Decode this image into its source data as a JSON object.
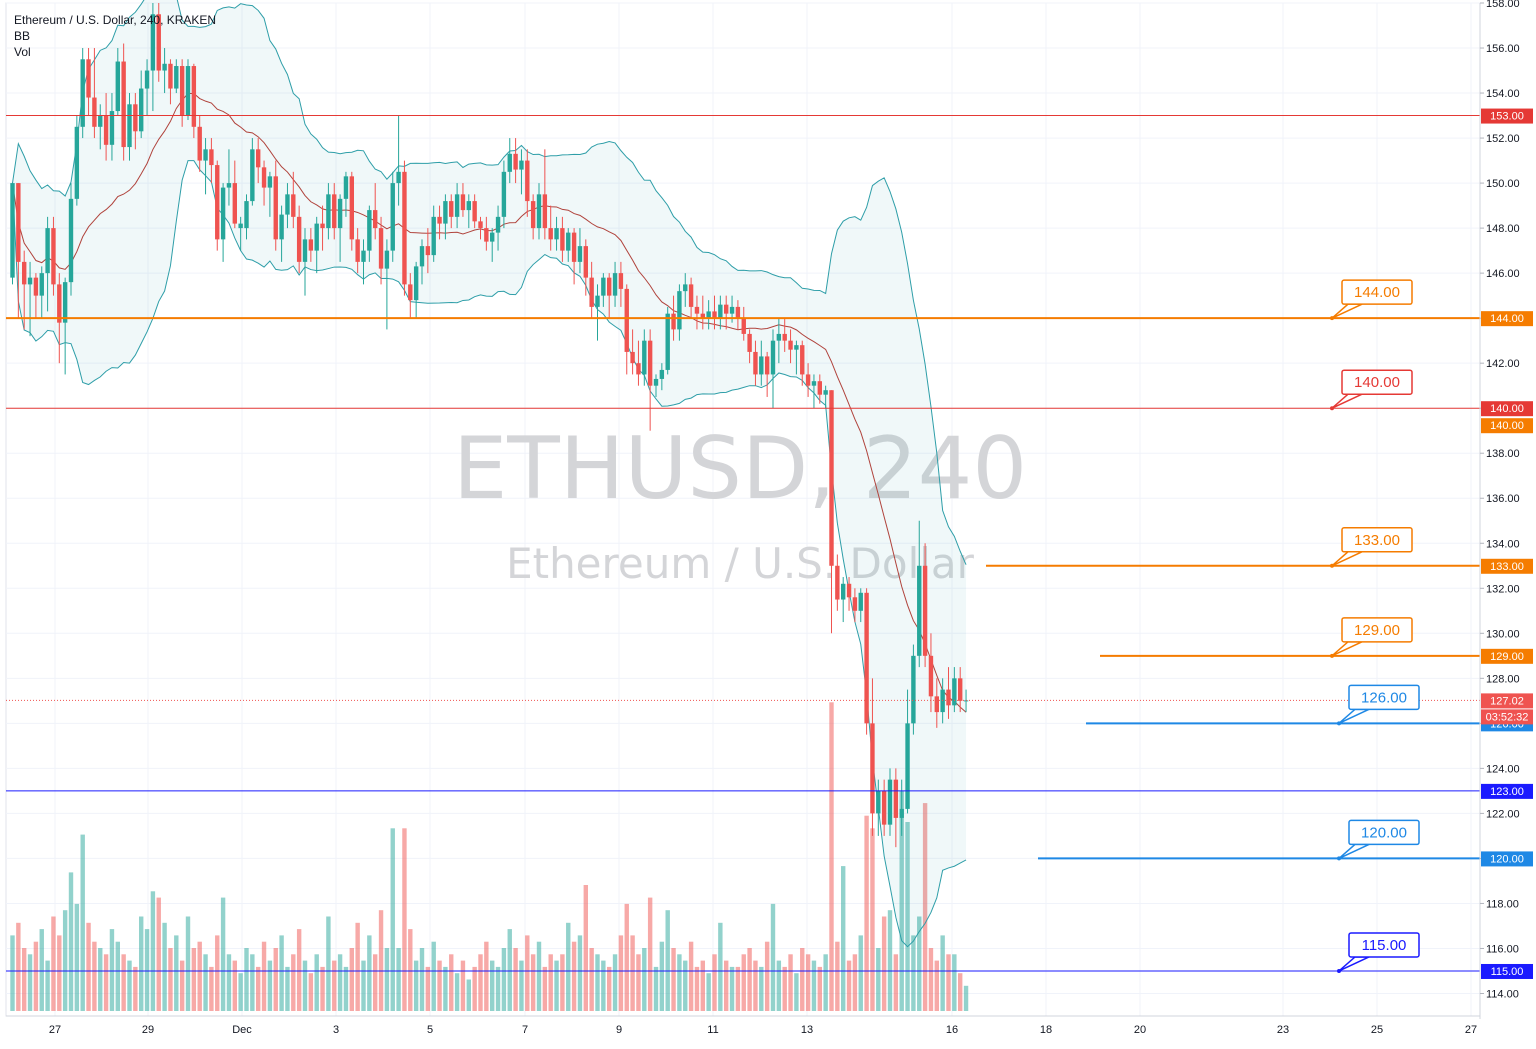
{
  "legend": {
    "symbol_line": "Ethereum / U.S. Dollar, 240, KRAKEN",
    "indicator_bb": "BB",
    "indicator_vol": "Vol"
  },
  "watermark": {
    "symbol": "ETHUSD, 240",
    "description": "Ethereum / U.S. Dollar"
  },
  "colors": {
    "up": "#26a69a",
    "down": "#ef5350",
    "bb_band": "#2e9ea8",
    "bb_basis": "#b0433c",
    "red_level": "#e53935",
    "orange_level": "#f57c00",
    "blue_level": "#1e88e5",
    "navy_level": "#1a1aff"
  },
  "chart_data": {
    "type": "candlestick",
    "title": "Ethereum / U.S. Dollar, 240, KRAKEN",
    "y_axis": {
      "range": [
        113,
        158
      ],
      "ticks": [
        "114.00",
        "116.00",
        "118.00",
        "120.00",
        "122.00",
        "124.00",
        "126.00",
        "128.00",
        "130.00",
        "132.00",
        "134.00",
        "136.00",
        "138.00",
        "140.00",
        "142.00",
        "144.00",
        "146.00",
        "148.00",
        "150.00",
        "152.00",
        "154.00",
        "156.00",
        "158.00"
      ]
    },
    "x_axis": {
      "ticks": [
        "27",
        "29",
        "Dec",
        "3",
        "5",
        "7",
        "9",
        "11",
        "13",
        "16",
        "18",
        "20",
        "23",
        "25",
        "27"
      ]
    },
    "last_price": {
      "value": 127.02,
      "label": "127.02",
      "countdown": "03:52:32"
    },
    "levels": [
      {
        "value": 153,
        "label": "153.00",
        "color": "red",
        "style": "thin"
      },
      {
        "value": 144,
        "label": "144.00",
        "color": "orange",
        "style": "thick",
        "callout": "144.00"
      },
      {
        "value": 140,
        "label": "140.00",
        "color": "red",
        "style": "thin",
        "callout": "140.00"
      },
      {
        "value": 140,
        "label": "140.00",
        "color": "orange",
        "style": "axis-only"
      },
      {
        "value": 133,
        "label": "133.00",
        "color": "orange",
        "style": "thick",
        "callout": "133.00",
        "from_date": "Dec 16"
      },
      {
        "value": 129,
        "label": "129.00",
        "color": "orange",
        "style": "thick",
        "callout": "129.00",
        "from_date": "Dec 19"
      },
      {
        "value": 126,
        "label": "126.00",
        "color": "blue",
        "style": "thick",
        "callout": "126.00",
        "from_date": "Dec 19"
      },
      {
        "value": 123,
        "label": "123.00",
        "color": "navy",
        "style": "thin"
      },
      {
        "value": 120,
        "label": "120.00",
        "color": "blue",
        "style": "thick",
        "callout": "120.00",
        "from_date": "Dec 18"
      },
      {
        "value": 115,
        "label": "115.00",
        "color": "navy",
        "style": "thin",
        "callout": "115.00"
      }
    ],
    "candles": [
      [
        145.8,
        150.0,
        145.5,
        150.0,
        "u",
        1.2
      ],
      [
        150.0,
        150.0,
        144.0,
        146.5,
        "d",
        1.4
      ],
      [
        146.5,
        147.0,
        143.5,
        145.5,
        "d",
        1.0
      ],
      [
        145.5,
        146.5,
        143.2,
        145.8,
        "u",
        0.9
      ],
      [
        145.8,
        146.0,
        144.0,
        145.0,
        "d",
        1.1
      ],
      [
        145.0,
        146.3,
        144.0,
        146.0,
        "u",
        1.3
      ],
      [
        146.0,
        148.5,
        144.3,
        148.0,
        "u",
        0.8
      ],
      [
        148.0,
        148.5,
        145.0,
        145.5,
        "d",
        1.5
      ],
      [
        145.5,
        146.0,
        142.0,
        143.8,
        "d",
        1.2
      ],
      [
        143.8,
        145.8,
        141.5,
        145.6,
        "u",
        1.6
      ],
      [
        145.6,
        150.0,
        145.0,
        149.3,
        "u",
        2.2
      ],
      [
        149.3,
        153.0,
        149.0,
        152.5,
        "u",
        1.7
      ],
      [
        152.5,
        156.0,
        152.0,
        155.5,
        "u",
        2.8
      ],
      [
        155.5,
        156.0,
        153.0,
        153.8,
        "d",
        1.4
      ],
      [
        153.8,
        156.0,
        152.0,
        152.5,
        "d",
        1.1
      ],
      [
        152.5,
        153.5,
        151.5,
        153.0,
        "u",
        1.0
      ],
      [
        153.0,
        154.0,
        151.0,
        151.7,
        "d",
        0.9
      ],
      [
        151.7,
        154.0,
        151.0,
        153.2,
        "u",
        1.3
      ],
      [
        153.2,
        156.0,
        153.0,
        155.4,
        "u",
        1.1
      ],
      [
        155.4,
        156.2,
        151.0,
        151.6,
        "d",
        0.9
      ],
      [
        151.6,
        154.0,
        151.0,
        153.5,
        "u",
        0.8
      ],
      [
        153.5,
        154.0,
        151.5,
        152.3,
        "d",
        0.7
      ],
      [
        152.3,
        155.0,
        152.0,
        154.2,
        "u",
        1.5
      ],
      [
        154.2,
        155.5,
        153.0,
        155.0,
        "u",
        1.3
      ],
      [
        155.0,
        158.0,
        153.2,
        157.5,
        "u",
        1.9
      ],
      [
        157.5,
        158.0,
        154.5,
        155.0,
        "d",
        1.8
      ],
      [
        155.0,
        156.0,
        154.0,
        155.3,
        "u",
        1.4
      ],
      [
        155.3,
        155.5,
        153.5,
        154.2,
        "d",
        1.0
      ],
      [
        154.2,
        155.5,
        154.0,
        155.2,
        "u",
        1.2
      ],
      [
        155.2,
        155.5,
        152.5,
        153.0,
        "d",
        0.8
      ],
      [
        153.0,
        155.5,
        152.8,
        155.2,
        "u",
        1.5
      ],
      [
        155.2,
        155.3,
        152.0,
        152.5,
        "d",
        1.0
      ],
      [
        152.5,
        153.0,
        150.5,
        151.0,
        "d",
        1.1
      ],
      [
        151.0,
        152.0,
        149.5,
        151.5,
        "u",
        0.9
      ],
      [
        151.5,
        152.0,
        150.0,
        150.8,
        "d",
        0.7
      ],
      [
        150.8,
        151.0,
        147.0,
        147.5,
        "d",
        1.2
      ],
      [
        147.5,
        150.0,
        146.5,
        149.8,
        "u",
        1.8
      ],
      [
        149.8,
        151.5,
        149.0,
        150.0,
        "u",
        0.9
      ],
      [
        150.0,
        151.0,
        148.0,
        148.2,
        "d",
        0.8
      ],
      [
        148.2,
        148.5,
        147.0,
        148.0,
        "u",
        0.6
      ],
      [
        148.0,
        149.5,
        147.5,
        149.2,
        "u",
        1.0
      ],
      [
        149.2,
        152.0,
        149.0,
        151.5,
        "u",
        0.9
      ],
      [
        151.5,
        152.0,
        150.0,
        150.7,
        "d",
        0.7
      ],
      [
        150.7,
        151.0,
        149.0,
        149.8,
        "d",
        1.1
      ],
      [
        149.8,
        150.5,
        148.5,
        150.3,
        "u",
        0.8
      ],
      [
        150.3,
        151.0,
        147.0,
        147.5,
        "d",
        1.0
      ],
      [
        147.5,
        149.0,
        146.5,
        148.6,
        "u",
        1.2
      ],
      [
        148.6,
        150.0,
        148.0,
        149.5,
        "u",
        0.7
      ],
      [
        149.5,
        150.5,
        148.0,
        148.5,
        "d",
        0.9
      ],
      [
        148.5,
        149.0,
        146.0,
        146.5,
        "d",
        1.3
      ],
      [
        146.5,
        148.0,
        145.0,
        147.5,
        "u",
        0.8
      ],
      [
        147.5,
        148.0,
        146.5,
        147.0,
        "d",
        0.6
      ],
      [
        147.0,
        148.5,
        146.0,
        148.2,
        "u",
        0.9
      ],
      [
        148.2,
        149.0,
        147.0,
        148.0,
        "d",
        0.7
      ],
      [
        148.0,
        150.0,
        147.5,
        149.5,
        "u",
        1.5
      ],
      [
        149.5,
        150.0,
        147.5,
        148.0,
        "d",
        0.8
      ],
      [
        148.0,
        149.5,
        146.5,
        149.3,
        "u",
        0.9
      ],
      [
        149.3,
        150.5,
        148.5,
        150.3,
        "u",
        0.7
      ],
      [
        150.3,
        150.5,
        147.0,
        147.5,
        "d",
        1.0
      ],
      [
        147.5,
        148.0,
        146.0,
        146.5,
        "d",
        1.4
      ],
      [
        146.5,
        147.5,
        145.5,
        147.0,
        "u",
        0.8
      ],
      [
        147.0,
        149.0,
        146.5,
        148.8,
        "u",
        1.2
      ],
      [
        148.8,
        150.0,
        147.5,
        148.0,
        "d",
        0.9
      ],
      [
        148.0,
        148.5,
        145.5,
        146.2,
        "d",
        1.6
      ],
      [
        146.2,
        147.5,
        143.5,
        147.0,
        "u",
        1.0
      ],
      [
        147.0,
        150.5,
        146.5,
        150.0,
        "u",
        2.9
      ],
      [
        150.0,
        153.0,
        149.0,
        150.5,
        "u",
        1.0
      ],
      [
        150.5,
        151.0,
        145.0,
        145.5,
        "d",
        2.9
      ],
      [
        145.5,
        146.0,
        144.0,
        144.8,
        "d",
        1.3
      ],
      [
        144.8,
        146.5,
        144.0,
        146.3,
        "u",
        0.8
      ],
      [
        146.3,
        147.5,
        145.5,
        147.2,
        "u",
        1.0
      ],
      [
        147.2,
        148.0,
        146.0,
        146.8,
        "d",
        0.7
      ],
      [
        146.8,
        149.0,
        146.5,
        148.5,
        "u",
        1.1
      ],
      [
        148.5,
        149.0,
        147.5,
        148.2,
        "d",
        0.8
      ],
      [
        148.2,
        149.5,
        147.5,
        149.2,
        "u",
        0.7
      ],
      [
        149.2,
        149.5,
        148.0,
        148.5,
        "d",
        0.9
      ],
      [
        148.5,
        150.0,
        148.0,
        149.5,
        "u",
        0.6
      ],
      [
        149.5,
        150.0,
        148.5,
        148.8,
        "d",
        0.8
      ],
      [
        148.8,
        149.5,
        148.0,
        149.2,
        "u",
        0.5
      ],
      [
        149.2,
        149.5,
        148.0,
        148.3,
        "d",
        0.7
      ],
      [
        148.3,
        148.5,
        147.5,
        148.0,
        "d",
        0.9
      ],
      [
        148.0,
        148.5,
        147.0,
        147.4,
        "d",
        1.1
      ],
      [
        147.4,
        148.0,
        146.5,
        147.8,
        "u",
        0.8
      ],
      [
        147.8,
        149.0,
        147.0,
        148.5,
        "u",
        0.7
      ],
      [
        148.5,
        151.0,
        148.0,
        150.5,
        "u",
        1.0
      ],
      [
        150.5,
        152.0,
        150.0,
        151.3,
        "u",
        1.3
      ],
      [
        151.3,
        152.0,
        150.0,
        150.6,
        "d",
        1.0
      ],
      [
        150.6,
        151.5,
        149.5,
        151.0,
        "u",
        0.8
      ],
      [
        151.0,
        151.5,
        148.5,
        149.2,
        "d",
        1.2
      ],
      [
        149.2,
        149.5,
        147.5,
        148.0,
        "d",
        0.9
      ],
      [
        148.0,
        150.0,
        147.5,
        149.5,
        "u",
        1.1
      ],
      [
        149.5,
        151.5,
        147.5,
        148.0,
        "d",
        0.7
      ],
      [
        148.0,
        149.0,
        147.0,
        147.5,
        "d",
        0.9
      ],
      [
        147.5,
        148.5,
        147.0,
        148.0,
        "u",
        0.8
      ],
      [
        148.0,
        148.5,
        146.5,
        147.0,
        "d",
        0.9
      ],
      [
        147.0,
        148.0,
        146.5,
        147.8,
        "u",
        1.4
      ],
      [
        147.8,
        148.0,
        145.5,
        146.5,
        "d",
        1.1
      ],
      [
        146.5,
        148.0,
        146.0,
        147.2,
        "u",
        1.2
      ],
      [
        147.2,
        147.5,
        145.0,
        145.8,
        "d",
        2.0
      ],
      [
        145.8,
        146.5,
        144.0,
        144.5,
        "d",
        1.0
      ],
      [
        144.5,
        145.5,
        143.0,
        145.0,
        "u",
        0.9
      ],
      [
        145.0,
        146.0,
        144.5,
        145.8,
        "u",
        0.8
      ],
      [
        145.8,
        146.0,
        144.0,
        145.0,
        "d",
        0.7
      ],
      [
        145.0,
        146.5,
        144.5,
        146.0,
        "u",
        0.9
      ],
      [
        146.0,
        146.5,
        144.5,
        145.3,
        "d",
        1.2
      ],
      [
        145.3,
        145.5,
        141.5,
        142.5,
        "d",
        1.7
      ],
      [
        142.5,
        143.5,
        141.5,
        142.0,
        "d",
        1.2
      ],
      [
        142.0,
        143.0,
        141.0,
        141.5,
        "d",
        0.9
      ],
      [
        141.5,
        143.5,
        141.0,
        143.0,
        "u",
        1.0
      ],
      [
        143.0,
        143.5,
        139.0,
        141.0,
        "d",
        1.8
      ],
      [
        141.0,
        141.5,
        140.5,
        141.3,
        "u",
        0.7
      ],
      [
        141.3,
        142.0,
        140.8,
        141.7,
        "u",
        1.1
      ],
      [
        141.7,
        144.5,
        141.5,
        144.2,
        "u",
        1.6
      ],
      [
        144.2,
        145.0,
        143.0,
        143.5,
        "d",
        1.0
      ],
      [
        143.5,
        145.5,
        143.0,
        145.2,
        "u",
        0.9
      ],
      [
        145.2,
        146.0,
        144.5,
        145.5,
        "u",
        0.8
      ],
      [
        145.5,
        145.8,
        144.0,
        144.5,
        "d",
        1.1
      ],
      [
        144.5,
        145.0,
        143.5,
        144.2,
        "d",
        0.7
      ],
      [
        144.2,
        145.0,
        143.5,
        144.0,
        "d",
        0.8
      ],
      [
        144.0,
        144.8,
        143.5,
        144.3,
        "u",
        0.6
      ],
      [
        144.3,
        145.0,
        143.5,
        144.0,
        "d",
        0.9
      ],
      [
        144.0,
        145.0,
        143.5,
        144.6,
        "u",
        1.4
      ],
      [
        144.6,
        145.0,
        143.5,
        144.2,
        "d",
        0.8
      ],
      [
        144.2,
        145.0,
        143.8,
        144.5,
        "u",
        0.7
      ],
      [
        144.5,
        144.8,
        143.5,
        144.0,
        "d",
        0.7
      ],
      [
        144.0,
        144.5,
        143.0,
        143.3,
        "d",
        0.9
      ],
      [
        143.3,
        143.5,
        142.0,
        142.5,
        "d",
        1.0
      ],
      [
        142.5,
        143.0,
        141.0,
        141.5,
        "d",
        0.8
      ],
      [
        141.5,
        143.0,
        141.0,
        142.3,
        "u",
        0.7
      ],
      [
        142.3,
        142.5,
        140.5,
        141.5,
        "d",
        1.1
      ],
      [
        141.5,
        143.5,
        140.0,
        143.0,
        "u",
        1.7
      ],
      [
        143.0,
        144.0,
        142.0,
        143.3,
        "u",
        0.8
      ],
      [
        143.3,
        144.0,
        142.5,
        143.0,
        "d",
        0.7
      ],
      [
        143.0,
        143.5,
        142.0,
        142.6,
        "d",
        0.9
      ],
      [
        142.6,
        143.0,
        141.5,
        142.8,
        "u",
        0.6
      ],
      [
        142.8,
        143.0,
        141.0,
        141.5,
        "d",
        1.0
      ],
      [
        141.5,
        142.0,
        140.5,
        141.0,
        "d",
        0.9
      ],
      [
        141.0,
        141.5,
        140.0,
        141.2,
        "u",
        0.8
      ],
      [
        141.2,
        141.5,
        140.2,
        140.6,
        "d",
        0.7
      ],
      [
        140.6,
        141.0,
        140.0,
        140.8,
        "u",
        0.9
      ],
      [
        140.8,
        140.8,
        130.0,
        133.0,
        "d",
        4.9
      ],
      [
        133.0,
        133.5,
        131.0,
        131.5,
        "d",
        1.1
      ],
      [
        131.5,
        132.5,
        130.5,
        132.2,
        "u",
        2.3
      ],
      [
        132.2,
        132.5,
        131.0,
        131.6,
        "d",
        0.8
      ],
      [
        131.6,
        132.0,
        130.5,
        131.0,
        "d",
        0.9
      ],
      [
        131.0,
        132.0,
        130.5,
        131.8,
        "u",
        1.2
      ],
      [
        131.8,
        132.0,
        125.5,
        126.0,
        "d",
        3.1
      ],
      [
        126.0,
        128.0,
        121.0,
        122.0,
        "d",
        2.9
      ],
      [
        122.0,
        123.5,
        121.0,
        123.0,
        "u",
        1.0
      ],
      [
        123.0,
        123.5,
        121.0,
        121.5,
        "d",
        1.5
      ],
      [
        121.5,
        124.0,
        121.0,
        123.5,
        "u",
        1.6
      ],
      [
        123.5,
        124.0,
        120.5,
        121.8,
        "d",
        0.9
      ],
      [
        121.8,
        123.5,
        121.0,
        122.2,
        "u",
        3.5
      ],
      [
        122.2,
        127.5,
        122.0,
        126.0,
        "u",
        3.0
      ],
      [
        126.0,
        129.5,
        125.5,
        129.0,
        "u",
        1.2
      ],
      [
        129.0,
        135.0,
        128.5,
        133.0,
        "u",
        1.5
      ],
      [
        133.0,
        134.0,
        128.5,
        129.0,
        "d",
        3.3
      ],
      [
        129.0,
        130.0,
        126.5,
        127.2,
        "d",
        1.0
      ],
      [
        127.2,
        128.0,
        125.8,
        126.5,
        "d",
        0.8
      ],
      [
        126.5,
        128.0,
        126.0,
        127.5,
        "u",
        1.2
      ],
      [
        127.5,
        128.5,
        126.2,
        126.8,
        "d",
        0.9
      ],
      [
        126.8,
        128.5,
        126.5,
        128.0,
        "u",
        0.9
      ],
      [
        128.0,
        128.5,
        126.5,
        127.0,
        "d",
        0.6
      ],
      [
        127.0,
        127.5,
        126.5,
        127.02,
        "u",
        0.4
      ]
    ]
  }
}
